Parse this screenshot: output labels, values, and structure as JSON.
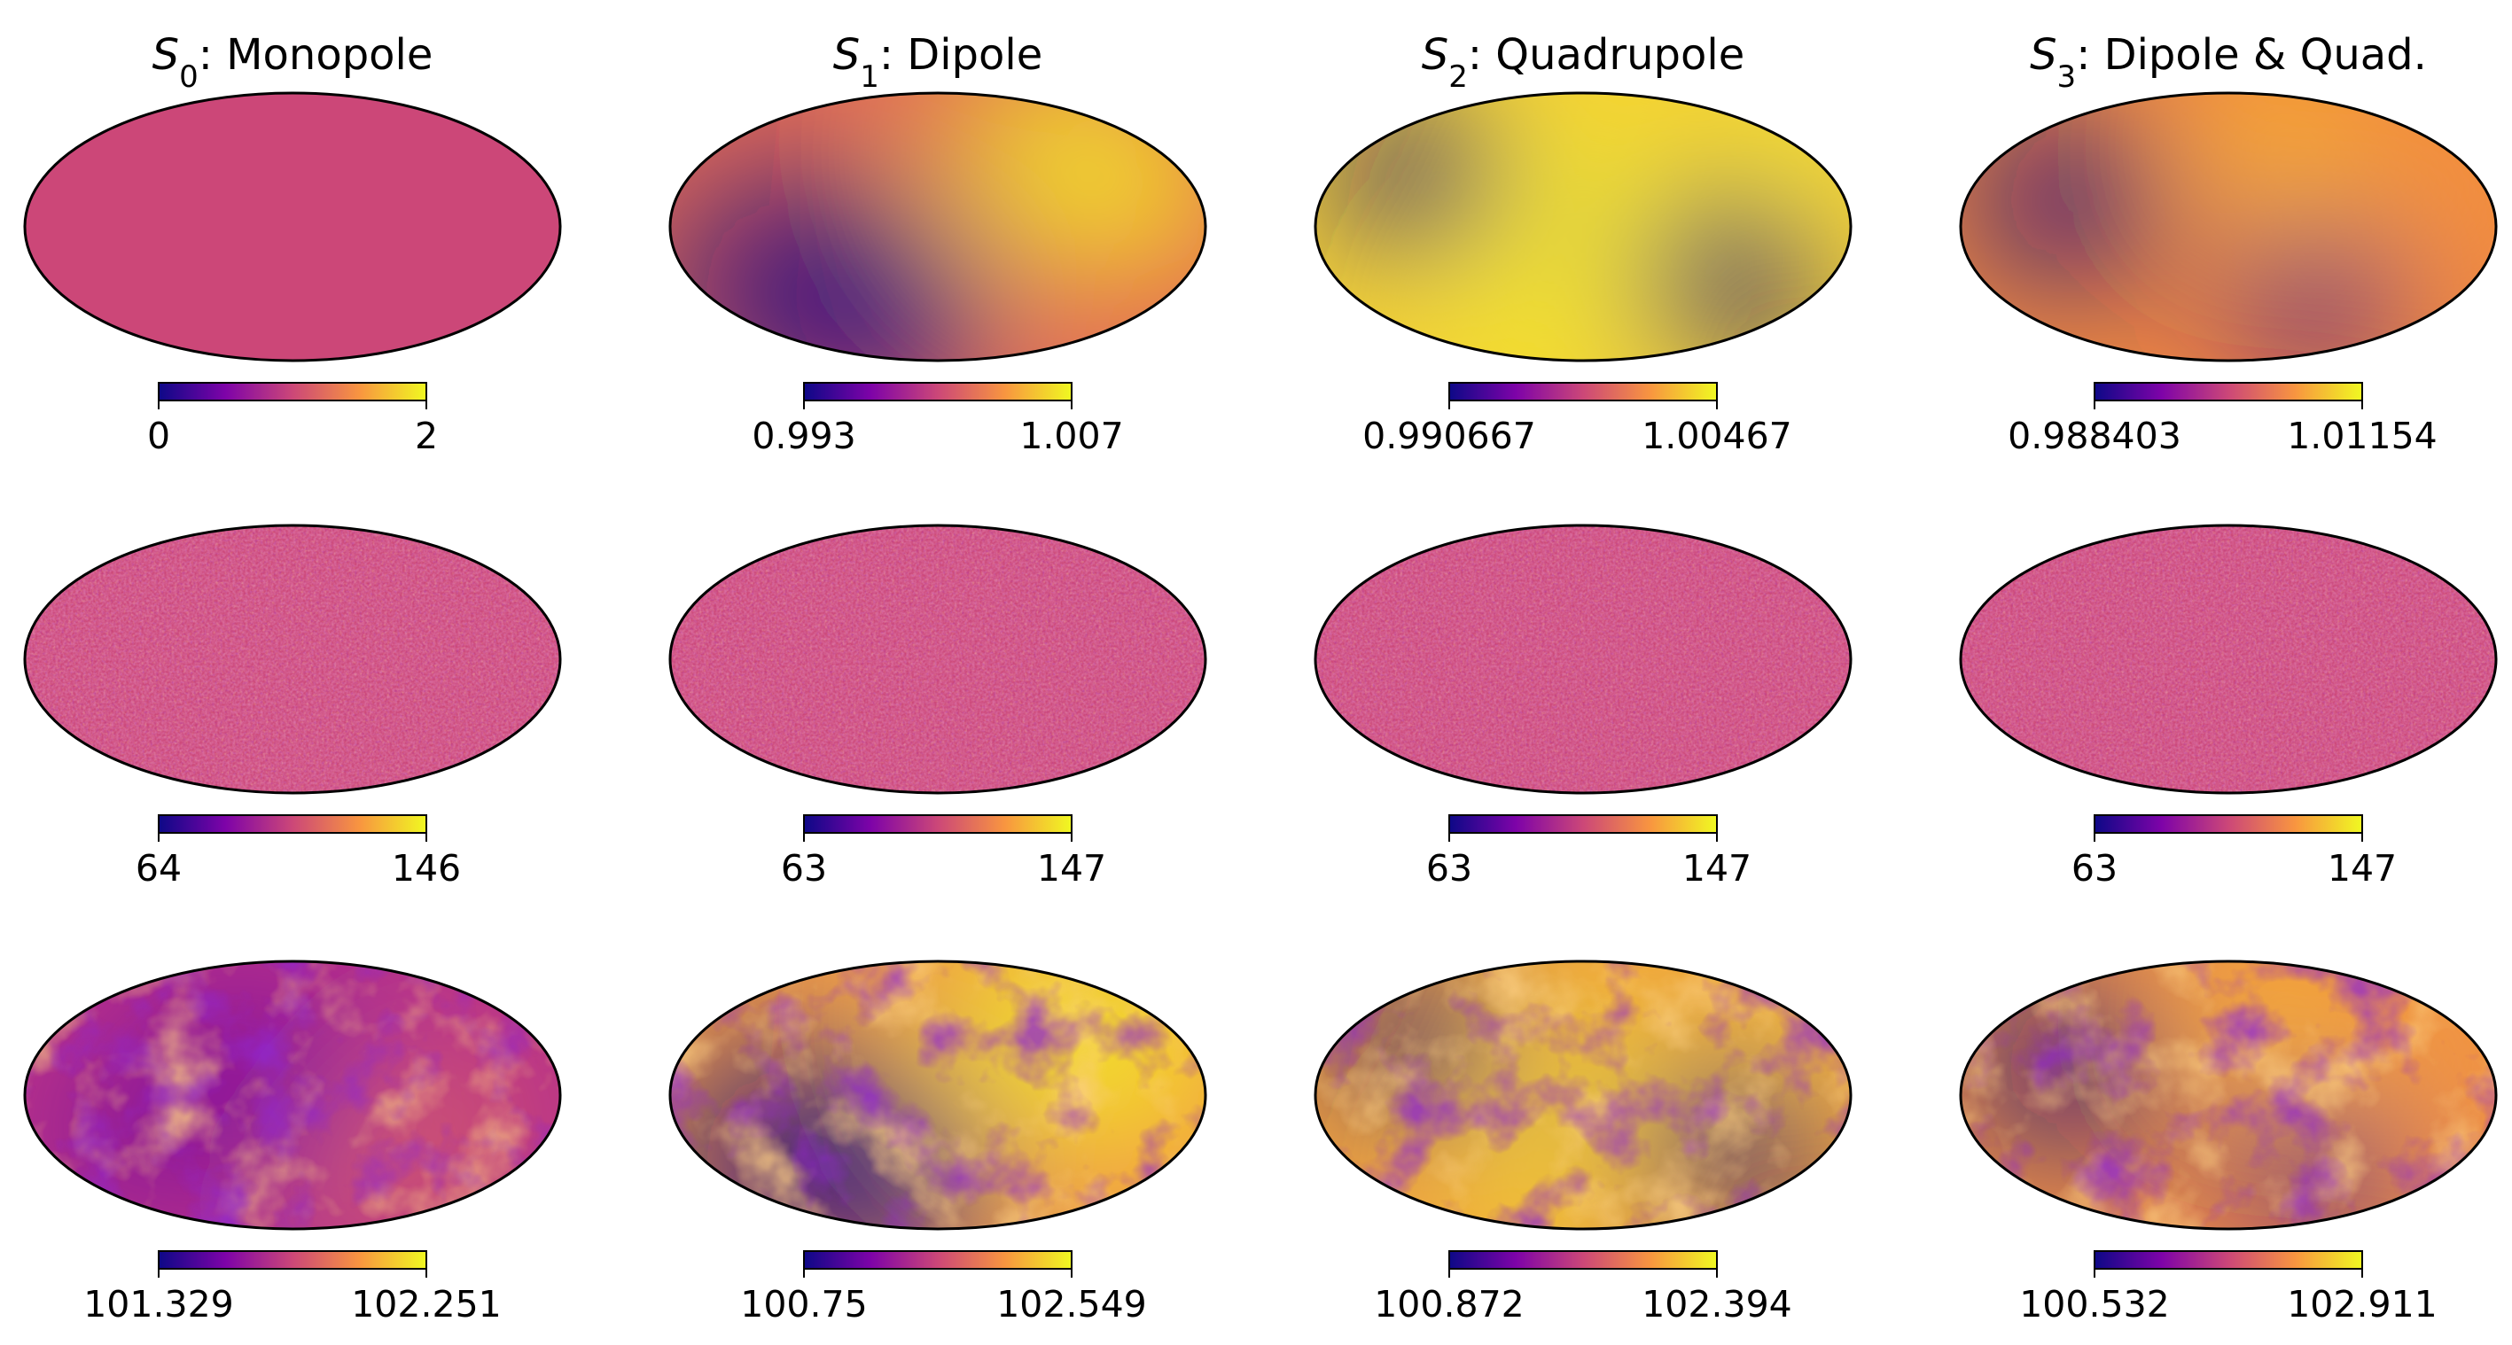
{
  "columns": [
    {
      "title_symbol": "S",
      "title_sub": "0",
      "title_text": ": Monopole"
    },
    {
      "title_symbol": "S",
      "title_sub": "1",
      "title_text": ": Dipole"
    },
    {
      "title_symbol": "S",
      "title_sub": "2",
      "title_text": ": Quadrupole"
    },
    {
      "title_symbol": "S",
      "title_sub": "3",
      "title_text": ": Dipole & Quad."
    }
  ],
  "colormap": "plasma",
  "colors": {
    "low": "#0d0887",
    "mid": "#cc4778",
    "high": "#f0f921",
    "outline": "#000000"
  },
  "chart_data": {
    "type": "heatmap",
    "projection": "mollweide",
    "rows": 3,
    "cols": 4,
    "panels": [
      [
        {
          "pattern": "monopole",
          "cbar_min": "0",
          "cbar_max": "2"
        },
        {
          "pattern": "dipole",
          "cbar_min": "0.993",
          "cbar_max": "1.007"
        },
        {
          "pattern": "quadrupole",
          "cbar_min": "0.990667",
          "cbar_max": "1.00467"
        },
        {
          "pattern": "dipole+quadrupole",
          "cbar_min": "0.988403",
          "cbar_max": "1.01154"
        }
      ],
      [
        {
          "pattern": "poisson-noise",
          "cbar_min": "64",
          "cbar_max": "146"
        },
        {
          "pattern": "poisson-noise",
          "cbar_min": "63",
          "cbar_max": "147"
        },
        {
          "pattern": "poisson-noise",
          "cbar_min": "63",
          "cbar_max": "147"
        },
        {
          "pattern": "poisson-noise",
          "cbar_min": "63",
          "cbar_max": "147"
        }
      ],
      [
        {
          "pattern": "smoothed-noise",
          "cbar_min": "101.329",
          "cbar_max": "102.251"
        },
        {
          "pattern": "smoothed-dipole",
          "cbar_min": "100.75",
          "cbar_max": "102.549"
        },
        {
          "pattern": "smoothed-quadrupole",
          "cbar_min": "100.872",
          "cbar_max": "102.394"
        },
        {
          "pattern": "smoothed-dipole+quadrupole",
          "cbar_min": "100.532",
          "cbar_max": "102.911"
        }
      ]
    ]
  }
}
